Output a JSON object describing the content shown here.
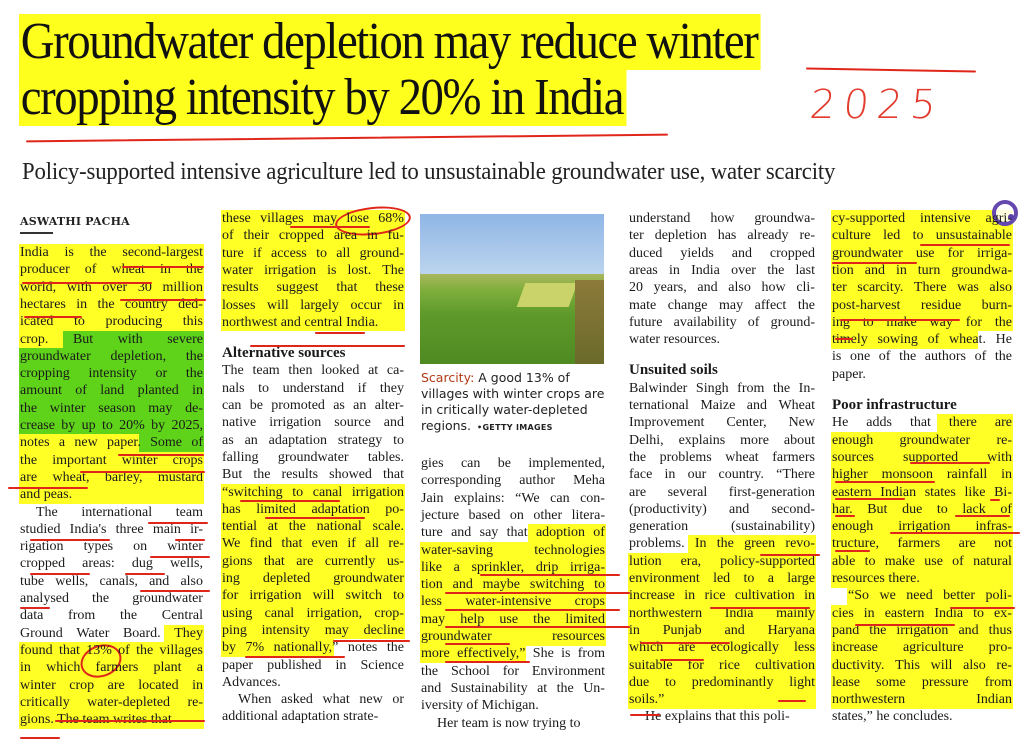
{
  "headline": {
    "line1": "Groundwater depletion may reduce winter",
    "line2": "cropping intensity by 20% in India",
    "annotation": "2025"
  },
  "subheadline": "Policy-supported intensive agriculture led to unsustainable groundwater use, water scarcity",
  "byline": "ASWATHI PACHA",
  "photo": {
    "caption_label": "Scarcity:",
    "caption_text": " A good 13% of villages with winter crops are in critically water-depleted regions.",
    "credit": "•GETTY IMAGES"
  },
  "colors": {
    "highlight_yellow": "#ffff26",
    "highlight_green": "#5fd31a",
    "pen_red": "#e0261a",
    "icon_purple": "#6547b0"
  },
  "columns": [
    {
      "lines": [
        "India is the second-largest",
        "producer of wheat in the",
        "world, with over 30 million",
        "hectares in the country ded-",
        "icated to producing this",
        "crop. But with severe",
        "groundwater depletion, the",
        "cropping intensity or the",
        "amount of land planted in",
        "the winter season may de-",
        "crease by up to 20% by 2025,",
        "notes a new paper. Some of",
        "the important winter crops",
        "are wheat, barley, mustard",
        "and peas.",
        "The international team",
        "studied India's three main ir-",
        "rigation types on winter",
        "cropped areas: dug wells,",
        "tube wells, canals, and also",
        "analysed the groundwater",
        "data from the Central",
        "Ground Water Board. They",
        "found that 13% of the villages",
        "in which farmers plant a",
        "winter crop are located in",
        "critically water-depleted re-",
        "gions. The team writes that"
      ]
    },
    {
      "lines": [
        "these villages may lose 68%",
        "of their cropped area in fu-",
        "ture if access to all ground-",
        "water irrigation is lost. The",
        "results suggest that these",
        "losses will largely occur in",
        "northwest and central India.",
        "Alternative sources",
        "The team then looked at ca-",
        "nals to understand if they",
        "can be promoted as an alter-",
        "native irrigation source and",
        "as an adaptation strategy to",
        "falling groundwater tables.",
        "But the results showed that",
        "“switching to canal irrigation",
        "has limited adaptation po-",
        "tential at the national scale.",
        "We find that even if all re-",
        "gions that are currently us-",
        "ing depleted groundwater",
        "for irrigation will switch to",
        "using canal irrigation, crop-",
        "ping intensity may decline",
        "by 7% nationally,” notes the",
        "paper published in Science",
        "Advances.",
        "When asked what new or",
        "additional adaptation strate-"
      ]
    },
    {
      "lines": [
        "gies can be implemented,",
        "corresponding author Meha",
        "Jain explains: “We can con-",
        "jecture based on other litera-",
        "ture and say that adoption of",
        "water-saving technologies",
        "like a sprinkler, drip irriga-",
        "tion and maybe switching to",
        "less water-intensive crops",
        "may help use the limited",
        "groundwater resources",
        "more effectively,” She is from",
        "the School for Environment",
        "and Sustainability at the Un-",
        "iversity of Michigan.",
        "Her team is now trying to"
      ]
    },
    {
      "lines": [
        "understand how groundwa-",
        "ter depletion has already re-",
        "duced yields and cropped",
        "areas in India over the last",
        "20 years, and also how cli-",
        "mate change may affect the",
        "future availability of ground-",
        "water resources.",
        "Unsuited soils",
        "Balwinder Singh from the In-",
        "ternational Maize and Wheat",
        "Improvement Center, New",
        "Delhi, explains more about",
        "the problems wheat farmers",
        "face in our country. “There",
        "are several first-generation",
        "(productivity) and second-",
        "generation (sustainability)",
        "problems. In the green revo-",
        "lution era, policy-supported",
        "environment led to a large",
        "increase in rice cultivation in",
        "northwestern India mainly",
        "in Punjab and Haryana",
        "which are ecologically less",
        "suitable for rice cultivation",
        "due to predominantly light",
        "soils.”",
        "He explains that this poli-"
      ]
    },
    {
      "lines": [
        "cy-supported intensive agri-",
        "culture led to unsustainable",
        "groundwater use for irriga-",
        "tion and in turn groundwa-",
        "ter scarcity. There was also",
        "post-harvest residue burn-",
        "ing to make way for the",
        "timely sowing of wheat. He",
        "is one of the authors of the",
        "paper.",
        "Poor infrastructure",
        "He adds that there are",
        "enough groundwater re-",
        "sources supported with",
        "higher monsoon rainfall in",
        "eastern Indian states like Bi-",
        "har. But due to lack of",
        "enough irrigation infras-",
        "tructure, farmers are not",
        "able to make use of natural",
        "resources there.",
        "“So we need better poli-",
        "cies in eastern India to ex-",
        "pand the irrigation and thus",
        "increase agriculture pro-",
        "ductivity. This will also re-",
        "lease some pressure from",
        "northwestern Indian",
        "states,” he concludes."
      ]
    }
  ]
}
